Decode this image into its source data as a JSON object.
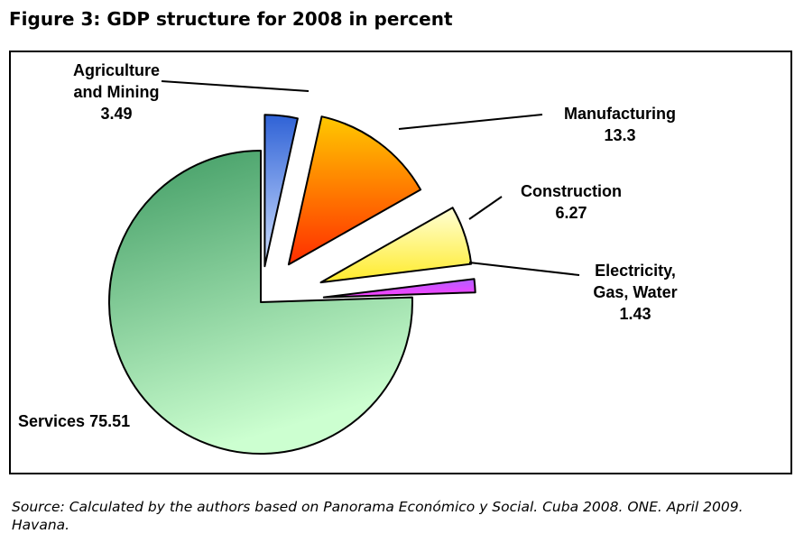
{
  "figure": {
    "title": "Figure 3: GDP structure for 2008 in percent",
    "source": "Source: Calculated by the authors based on Panorama Económico y Social. Cuba 2008. ONE. April 2009. Havana."
  },
  "colors": {
    "services": [
      "#3e9a62",
      "#ccffd0"
    ],
    "agriculture": [
      "#2f62d6",
      "#cfe0ff"
    ],
    "manufacturing": [
      "#ffc800",
      "#ff2e00"
    ],
    "construction": [
      "#ffffd6",
      "#ffeb2a"
    ],
    "electricity": [
      "#b060ff",
      "#ff40ff"
    ]
  },
  "chart_data": {
    "type": "pie",
    "title": "",
    "exploded": true,
    "slices": [
      {
        "key": "agriculture",
        "label": [
          "Agriculture",
          "and Mining",
          "3.49"
        ],
        "value": 3.49
      },
      {
        "key": "manufacturing",
        "label": [
          "Manufacturing",
          "13.3"
        ],
        "value": 13.3
      },
      {
        "key": "construction",
        "label": [
          "Construction",
          "6.27"
        ],
        "value": 6.27
      },
      {
        "key": "electricity",
        "label": [
          "Electricity,",
          "Gas, Water",
          "1.43"
        ],
        "value": 1.43
      },
      {
        "key": "services",
        "label": [
          "Services 75.51"
        ],
        "value": 75.51
      }
    ]
  }
}
